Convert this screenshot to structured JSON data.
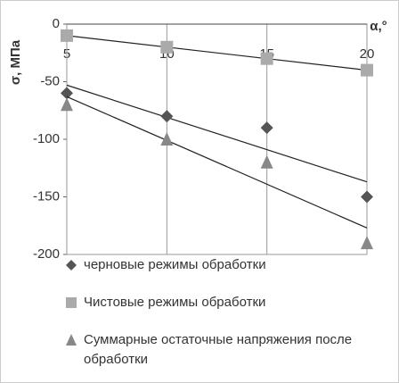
{
  "chart_data": {
    "type": "scatter",
    "x_label": "α,°",
    "y_label": "σ, МПа",
    "x": [
      5,
      10,
      15,
      20
    ],
    "xlim": [
      5,
      20
    ],
    "xticks": [
      5,
      10,
      15,
      20
    ],
    "ylim": [
      -200,
      0
    ],
    "yticks": [
      0,
      -50,
      -100,
      -150,
      -200
    ],
    "grid": true,
    "trendline": true,
    "series": [
      {
        "name": "черновые режимы обработки",
        "color": "#555555",
        "marker": "diamond",
        "values": [
          -60,
          -80,
          -90,
          -150
        ]
      },
      {
        "name": "Чистовые режимы обработки",
        "color": "#aaaaaa",
        "marker": "square",
        "values": [
          -10,
          -20,
          -30,
          -40
        ]
      },
      {
        "name": "Суммарные остаточные  напряжения после обработки",
        "color": "#888888",
        "marker": "triangle",
        "values": [
          -70,
          -100,
          -120,
          -190
        ]
      }
    ]
  }
}
